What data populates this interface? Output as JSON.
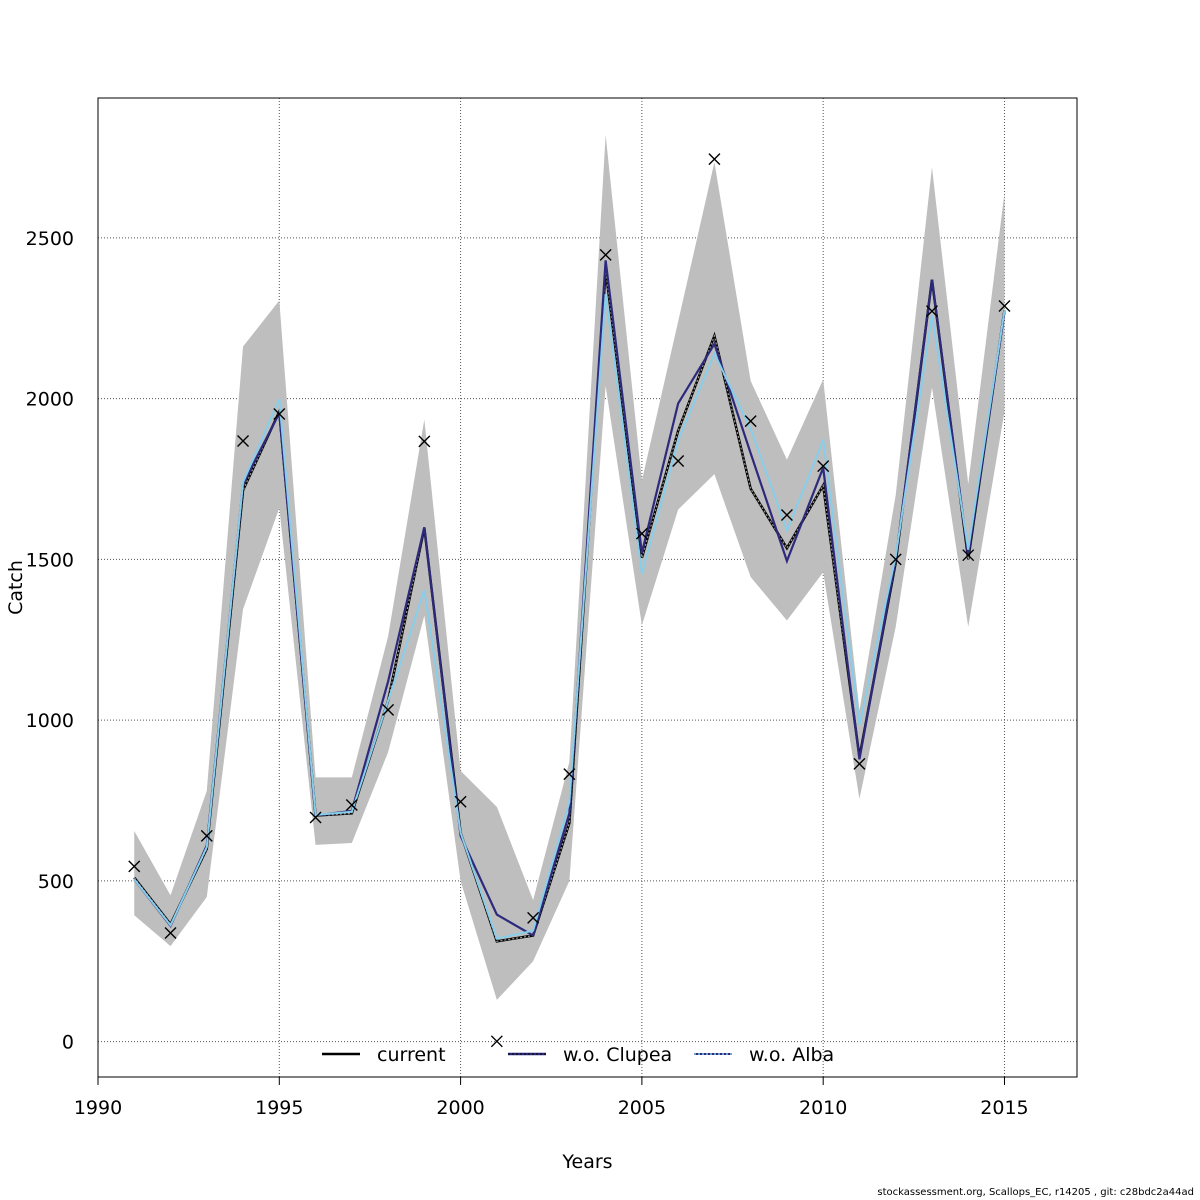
{
  "footer": "stockassessment.org, Scallops_EC, r14205 , git: c28bdc2a44ad",
  "chart_data": {
    "type": "line",
    "title": "",
    "xlabel": "Years",
    "ylabel": "Catch",
    "xlim": [
      1990,
      2017
    ],
    "ylim": [
      -110,
      2935
    ],
    "xticks": [
      1990,
      1995,
      2000,
      2005,
      2010,
      2015
    ],
    "yticks": [
      0,
      500,
      1000,
      1500,
      2000,
      2500
    ],
    "grid": true,
    "legend_position": "bottom",
    "x": [
      1991,
      1992,
      1993,
      1994,
      1995,
      1996,
      1997,
      1998,
      1999,
      2000,
      2001,
      2002,
      2003,
      2004,
      2005,
      2006,
      2007,
      2008,
      2009,
      2010,
      2011,
      2012,
      2013,
      2014,
      2015
    ],
    "observed": [
      545,
      338,
      640,
      1868,
      1952,
      697,
      736,
      1032,
      1867,
      746,
      1,
      385,
      832,
      2447,
      1580,
      1806,
      2745,
      1930,
      1638,
      1790,
      864,
      1500,
      2272,
      1513,
      2288
    ],
    "confidence_band": {
      "upper": [
        655,
        455,
        780,
        2162,
        2305,
        822,
        822,
        1260,
        1935,
        842,
        730,
        440,
        870,
        2820,
        1745,
        2240,
        2735,
        2055,
        1810,
        2060,
        1030,
        1700,
        2720,
        1735,
        2640
      ],
      "lower": [
        393,
        297,
        450,
        1345,
        1660,
        612,
        618,
        900,
        1325,
        500,
        130,
        250,
        500,
        2040,
        1295,
        1655,
        1765,
        1445,
        1310,
        1460,
        755,
        1290,
        2035,
        1290,
        1960
      ]
    },
    "series": [
      {
        "name": "current",
        "color": "#000000",
        "dash": "solid",
        "values": [
          510,
          365,
          600,
          1715,
          1960,
          703,
          710,
          1060,
          1598,
          650,
          312,
          330,
          680,
          2400,
          1505,
          1900,
          2195,
          1720,
          1535,
          1730,
          885,
          1490,
          2370,
          1500,
          2275
        ]
      },
      {
        "name": "w.o. Clupea",
        "color": "#2d2a7d",
        "dash": "solid",
        "values": [
          505,
          360,
          610,
          1735,
          1955,
          703,
          718,
          1120,
          1600,
          640,
          395,
          330,
          710,
          2430,
          1520,
          1985,
          2170,
          1830,
          1495,
          1785,
          878,
          1500,
          2370,
          1510,
          2270
        ]
      },
      {
        "name": "w.o. Alba",
        "color": "#87ceeb",
        "dash": "dotted",
        "values": [
          505,
          362,
          605,
          1740,
          1998,
          705,
          715,
          1060,
          1405,
          650,
          320,
          345,
          745,
          2325,
          1455,
          1870,
          2140,
          1905,
          1590,
          1870,
          985,
          1510,
          2260,
          1530,
          2275
        ]
      }
    ]
  }
}
